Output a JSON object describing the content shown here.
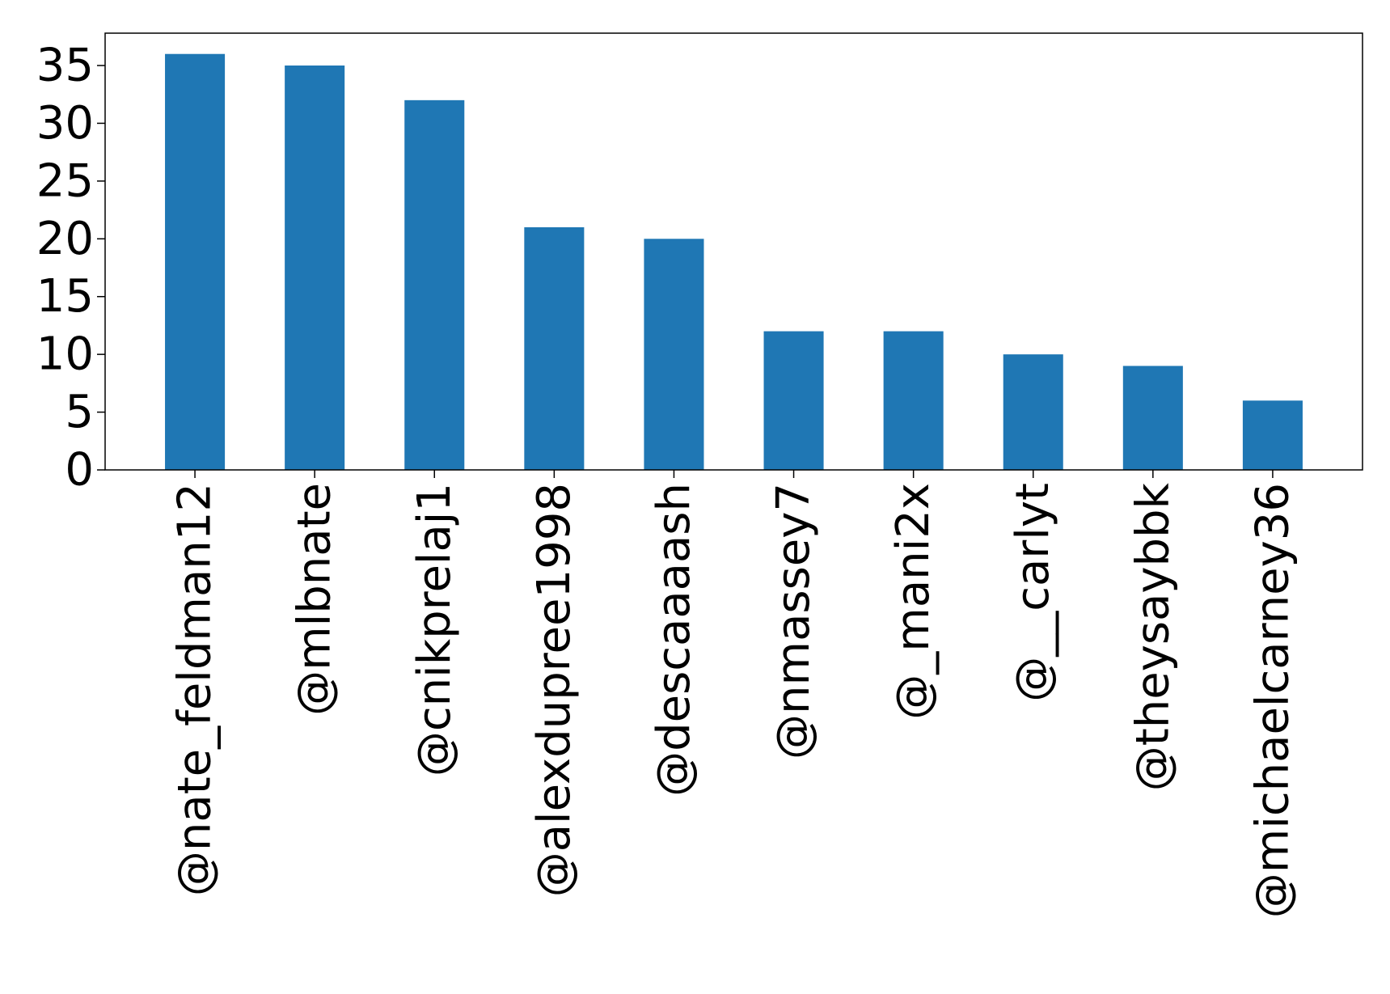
{
  "chart_data": {
    "type": "bar",
    "categories": [
      "@nate_feldman12",
      "@mlbnate",
      "@cnikprelaj1",
      "@alexdupree1998",
      "@descaaaash",
      "@nmassey7",
      "@_mani2x",
      "@__carlyt",
      "@theysaybbk",
      "@michaelcarney36"
    ],
    "values": [
      36,
      35,
      32,
      21,
      20,
      12,
      12,
      10,
      9,
      6
    ],
    "ylim": [
      0,
      37.8
    ],
    "yticks": [
      0,
      5,
      10,
      15,
      20,
      25,
      30,
      35
    ],
    "ytick_labels": [
      "0",
      "5",
      "10",
      "15",
      "20",
      "25",
      "30",
      "35"
    ],
    "title": "",
    "xlabel": "",
    "ylabel": "",
    "grid": false,
    "legend": "none",
    "x_tick_rotation": "vertical",
    "bar_color": "#1f77b4"
  }
}
